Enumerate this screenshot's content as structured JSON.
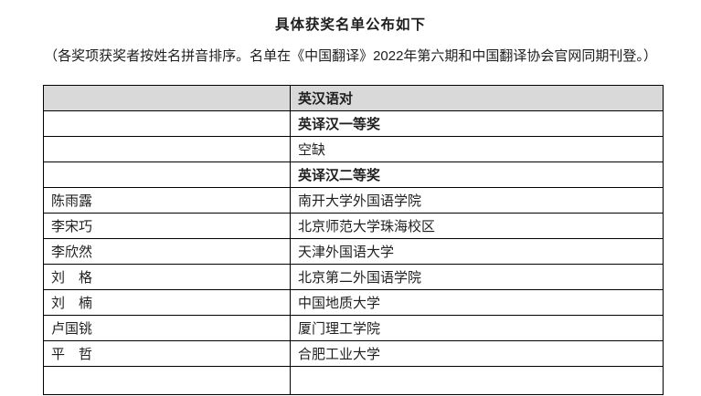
{
  "page": {
    "title": "具体获奖名单公布如下",
    "intro": "（各奖项获奖者按姓名拼音排序。名单在《中国翻译》2022年第六期和中国翻译协会官网同期刊登。）"
  },
  "table": {
    "header": [
      "",
      "英汉语对"
    ],
    "rows": [
      {
        "name": "",
        "value": "英译汉一等奖",
        "bold": true
      },
      {
        "name": "",
        "value": "空缺",
        "bold": false
      },
      {
        "name": "",
        "value": "英译汉二等奖",
        "bold": true
      },
      {
        "name": "陈雨露",
        "value": "南开大学外国语学院",
        "bold": false
      },
      {
        "name": "李宋巧",
        "value": "北京师范大学珠海校区",
        "bold": false
      },
      {
        "name": "李欣然",
        "value": "天津外国语大学",
        "bold": false
      },
      {
        "name": "刘　格",
        "value": "北京第二外国语学院",
        "bold": false
      },
      {
        "name": "刘　楠",
        "value": "中国地质大学",
        "bold": false
      },
      {
        "name": "卢国铫",
        "value": "厦门理工学院",
        "bold": false
      },
      {
        "name": "平　哲",
        "value": "合肥工业大学",
        "bold": false
      },
      {
        "name": "",
        "value": "",
        "partial": true
      }
    ],
    "colors": {
      "header_bg": "#d9d9d9",
      "border": "#000000",
      "text": "#1f1f1f"
    }
  }
}
